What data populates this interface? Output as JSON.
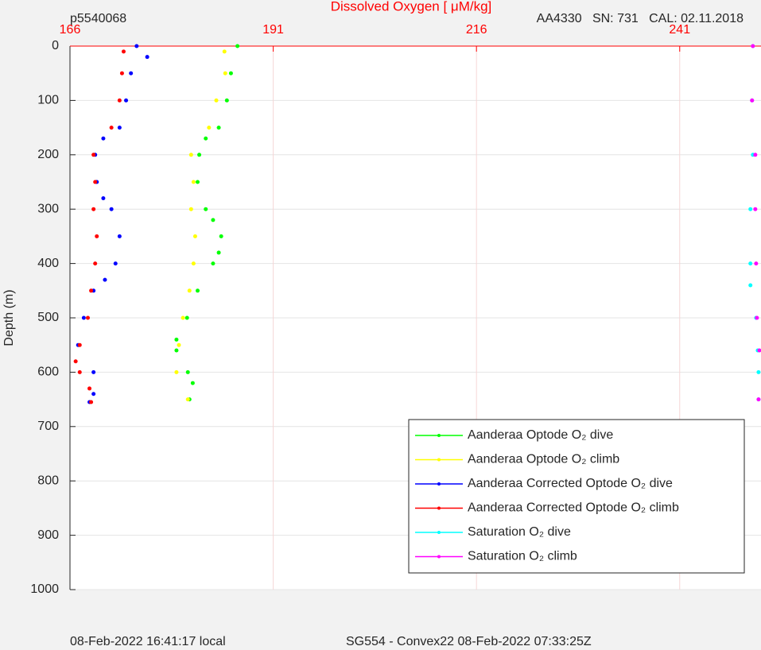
{
  "chart_data": {
    "type": "scatter",
    "title": "Dissolved Oxygen [ μM/kg]",
    "subtitle_left": "p5540068",
    "subtitle_right": "AA4330   SN: 731   CAL: 02.11.2018",
    "y_label": "Depth (m)",
    "footer_left": "08-Feb-2022 16:41:17 local",
    "footer_right": "SG554 - Convex22 08-Feb-2022 07:33:25Z",
    "xlim": [
      166,
      251
    ],
    "xticks": [
      166,
      191,
      216,
      241
    ],
    "ylim": [
      0,
      1000
    ],
    "yticks": [
      0,
      100,
      200,
      300,
      400,
      500,
      600,
      700,
      800,
      900,
      1000
    ],
    "y_inverted": true,
    "grid": true,
    "legend": "lower right",
    "series": [
      {
        "name": "Aanderaa Optode O₂ dive",
        "color": "#00ff00",
        "x": [
          186.6,
          185.8,
          185.3,
          184.3,
          182.7,
          181.9,
          181.7,
          182.7,
          183.6,
          184.6,
          184.3,
          183.6,
          181.7,
          180.4,
          179.1,
          179.1,
          180.5,
          181.1,
          180.7
        ],
        "y": [
          0,
          50,
          100,
          150,
          170,
          200,
          250,
          300,
          320,
          350,
          380,
          400,
          450,
          500,
          540,
          560,
          600,
          620,
          650
        ]
      },
      {
        "name": "Aanderaa Optode O₂ climb",
        "color": "#ffff00",
        "x": [
          185.0,
          185.1,
          184.0,
          183.1,
          180.9,
          181.2,
          180.9,
          181.4,
          181.2,
          180.7,
          179.9,
          179.4,
          179.1,
          180.5
        ],
        "y": [
          10,
          50,
          100,
          150,
          200,
          250,
          300,
          350,
          400,
          450,
          500,
          550,
          600,
          650
        ]
      },
      {
        "name": "Aanderaa Corrected Optode O₂ dive",
        "color": "#0000ff",
        "x": [
          174.2,
          175.5,
          173.5,
          172.9,
          172.1,
          170.1,
          169.1,
          169.3,
          170.1,
          171.1,
          172.1,
          171.6,
          170.3,
          168.9,
          167.7,
          167.0,
          168.9,
          168.9,
          168.4
        ],
        "y": [
          0,
          20,
          50,
          100,
          150,
          170,
          200,
          250,
          280,
          300,
          350,
          400,
          430,
          450,
          500,
          550,
          600,
          640,
          655
        ]
      },
      {
        "name": "Aanderaa Corrected Optode O₂ climb",
        "color": "#ff0000",
        "x": [
          172.6,
          172.4,
          172.1,
          171.1,
          168.9,
          169.1,
          168.9,
          169.3,
          169.1,
          168.6,
          168.2,
          167.2,
          166.7,
          167.2,
          168.4,
          168.6
        ],
        "y": [
          10,
          50,
          100,
          150,
          200,
          250,
          300,
          350,
          400,
          450,
          500,
          550,
          580,
          600,
          630,
          655
        ]
      },
      {
        "name": "Saturation O₂ dive",
        "color": "#00ffff",
        "x": [
          250.0,
          249.9,
          250.0,
          249.7,
          249.7,
          249.7,
          250.4,
          250.6,
          250.7,
          250.7
        ],
        "y": [
          0,
          100,
          200,
          300,
          400,
          440,
          500,
          560,
          600,
          650
        ]
      },
      {
        "name": "Saturation O₂ climb",
        "color": "#ff00ff",
        "x": [
          250.0,
          249.9,
          250.3,
          250.3,
          250.4,
          250.5,
          250.8,
          250.7
        ],
        "y": [
          0,
          100,
          200,
          300,
          400,
          500,
          560,
          650
        ]
      }
    ]
  }
}
